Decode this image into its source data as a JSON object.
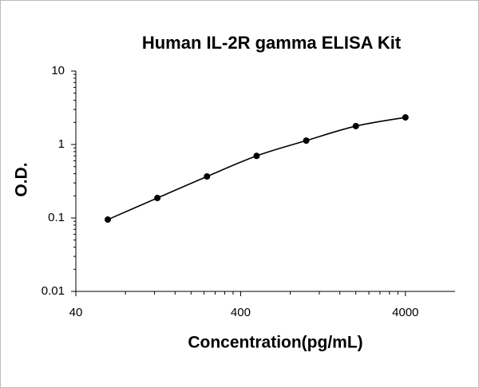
{
  "chart_data": {
    "type": "scatter",
    "title": "Human IL-2R gamma ELISA Kit",
    "x_label": "Concentration(pg/mL)",
    "y_label": "O.D.",
    "x": [
      62.5,
      125,
      250,
      500,
      1000,
      2000,
      4000
    ],
    "values": [
      0.095,
      0.187,
      0.367,
      0.7,
      1.13,
      1.78,
      2.34
    ],
    "color": "#000000",
    "x_log": true,
    "y_log": true,
    "xlim": [
      40,
      8000
    ],
    "xticks": [
      40,
      400,
      4000
    ],
    "ylim": [
      0.01,
      10
    ],
    "yticks": [
      0.01,
      0.1,
      1,
      10
    ]
  }
}
